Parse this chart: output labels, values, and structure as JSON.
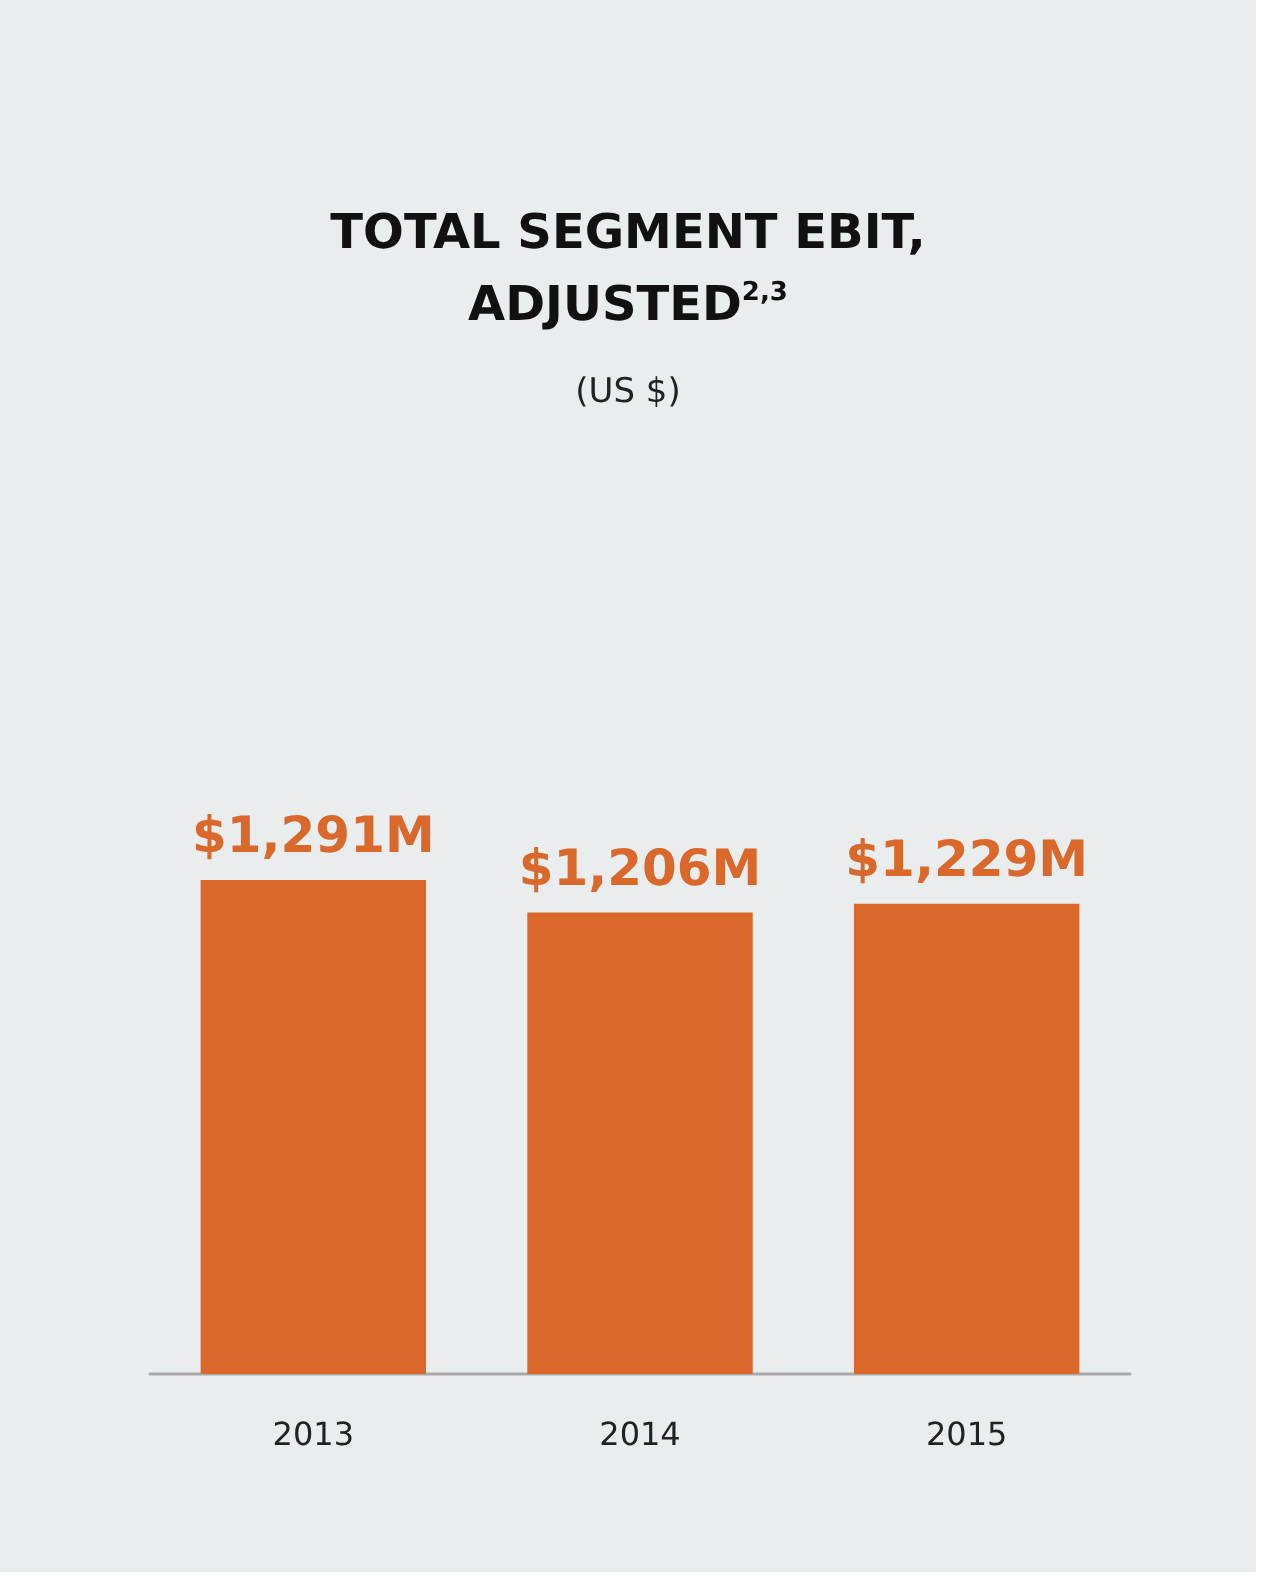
{
  "chart_data": {
    "type": "bar",
    "title": "TOTAL SEGMENT EBIT, ADJUSTED$^{2,3}$",
    "subtitle": "(US $)",
    "categories": [
      "2013",
      "2014",
      "2015"
    ],
    "values": [
      1291,
      1206,
      1229
    ],
    "value_labels": [
      "$1,291M",
      "$1,206M",
      "$1,229M"
    ],
    "color": "#d9682a"
  }
}
